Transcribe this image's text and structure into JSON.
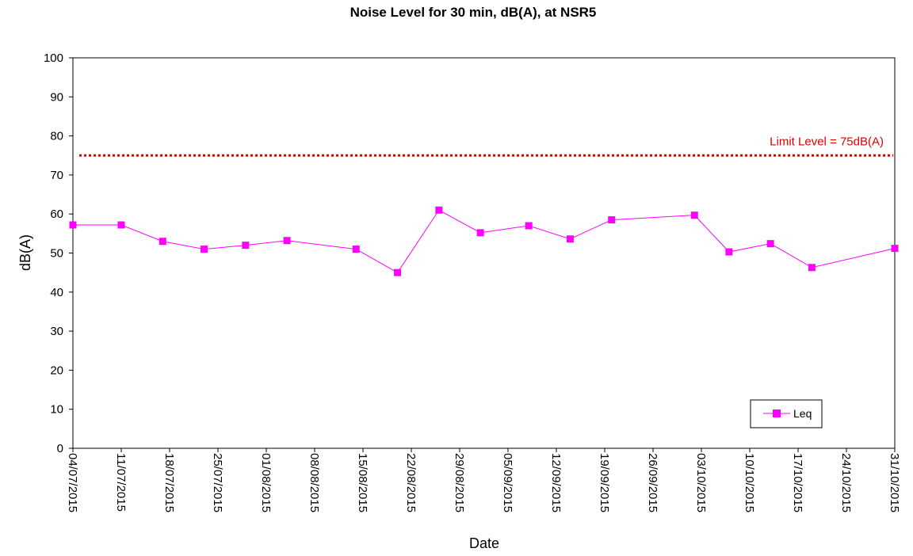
{
  "chart_data": {
    "type": "line",
    "title": "Noise Level for 30 min, dB(A), at NSR5",
    "xlabel": "Date",
    "ylabel": "dB(A)",
    "ylim": [
      0,
      100
    ],
    "y_ticks": [
      "0",
      "10",
      "20",
      "30",
      "40",
      "50",
      "60",
      "70",
      "80",
      "90",
      "100"
    ],
    "xlim": [
      "2015-07-04",
      "2015-10-31"
    ],
    "x_ticks": [
      "04/07/2015",
      "11/07/2015",
      "18/07/2015",
      "25/07/2015",
      "01/08/2015",
      "08/08/2015",
      "15/08/2015",
      "22/08/2015",
      "29/08/2015",
      "05/09/2015",
      "12/09/2015",
      "19/09/2015",
      "26/09/2015",
      "03/10/2015",
      "10/10/2015",
      "17/10/2015",
      "24/10/2015",
      "31/10/2015"
    ],
    "grid": false,
    "legend_position": "bottom-right",
    "series": [
      {
        "name": "Leq",
        "color": "#ff00ff",
        "marker": "square",
        "x": [
          "2015-07-04",
          "2015-07-11",
          "2015-07-17",
          "2015-07-23",
          "2015-07-29",
          "2015-08-04",
          "2015-08-14",
          "2015-08-20",
          "2015-08-26",
          "2015-09-01",
          "2015-09-08",
          "2015-09-14",
          "2015-09-20",
          "2015-10-02",
          "2015-10-07",
          "2015-10-13",
          "2015-10-19",
          "2015-10-31"
        ],
        "values": [
          57.2,
          57.2,
          53.0,
          51.0,
          52.0,
          53.2,
          51.0,
          45.0,
          61.0,
          55.2,
          57.0,
          53.6,
          58.5,
          59.7,
          50.3,
          52.4,
          46.3,
          51.2
        ]
      }
    ],
    "limit_line": {
      "value": 75,
      "label": "Limit Level = 75dB(A)",
      "color": "#e00000",
      "style": "dotted"
    }
  }
}
